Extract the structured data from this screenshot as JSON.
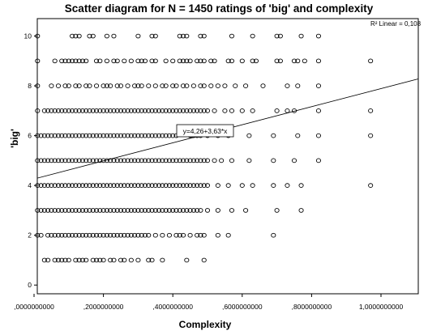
{
  "chart_data": {
    "type": "scatter",
    "title": "Scatter diagram for N = 1450 ratings of 'big' and complexity",
    "xlabel": "Complexity",
    "ylabel": "'big'",
    "xlim": [
      0.0,
      1.0
    ],
    "ylim": [
      -0.35,
      10.7
    ],
    "x_ticks": [
      0.0,
      0.2,
      0.4,
      0.6,
      0.8,
      1.0
    ],
    "x_tick_labels": [
      ",0000000000",
      ",2000000000",
      ",4000000000",
      ",6000000000",
      ",8000000000",
      "1,0000000000"
    ],
    "y_ticks": [
      0,
      2,
      4,
      6,
      8,
      10
    ],
    "y_tick_labels": [
      "0",
      "2",
      "4",
      "6",
      "8",
      "10"
    ],
    "grid": false,
    "fit_line": {
      "intercept": 4.26,
      "slope": 3.63
    },
    "fit_equation_label": "y=4,26+3,63*x",
    "r_squared_label": "R² Linear = 0,108",
    "series": [
      {
        "points_by_y": {
          "10": [
            0.01,
            0.11,
            0.12,
            0.13,
            0.16,
            0.17,
            0.21,
            0.23,
            0.3,
            0.34,
            0.35,
            0.42,
            0.43,
            0.44,
            0.48,
            0.49,
            0.57,
            0.63,
            0.7,
            0.71,
            0.77,
            0.82
          ],
          "9": [
            0.01,
            0.06,
            0.08,
            0.09,
            0.1,
            0.11,
            0.12,
            0.13,
            0.14,
            0.15,
            0.18,
            0.19,
            0.21,
            0.23,
            0.24,
            0.26,
            0.28,
            0.3,
            0.31,
            0.32,
            0.34,
            0.35,
            0.38,
            0.4,
            0.42,
            0.43,
            0.44,
            0.45,
            0.47,
            0.48,
            0.49,
            0.51,
            0.52,
            0.56,
            0.57,
            0.6,
            0.63,
            0.64,
            0.7,
            0.71,
            0.75,
            0.76,
            0.78,
            0.82,
            0.97
          ],
          "8": [
            0.01,
            0.05,
            0.07,
            0.09,
            0.1,
            0.12,
            0.13,
            0.15,
            0.16,
            0.18,
            0.2,
            0.21,
            0.22,
            0.24,
            0.25,
            0.27,
            0.29,
            0.3,
            0.31,
            0.33,
            0.35,
            0.37,
            0.38,
            0.4,
            0.41,
            0.43,
            0.44,
            0.46,
            0.48,
            0.49,
            0.51,
            0.53,
            0.55,
            0.58,
            0.61,
            0.66,
            0.73,
            0.76,
            0.82
          ],
          "7": [
            0.01,
            0.03,
            0.04,
            0.05,
            0.06,
            0.07,
            0.08,
            0.09,
            0.1,
            0.11,
            0.12,
            0.13,
            0.14,
            0.15,
            0.16,
            0.17,
            0.18,
            0.19,
            0.2,
            0.21,
            0.22,
            0.23,
            0.24,
            0.25,
            0.26,
            0.27,
            0.28,
            0.29,
            0.3,
            0.31,
            0.32,
            0.33,
            0.34,
            0.35,
            0.36,
            0.37,
            0.38,
            0.39,
            0.4,
            0.41,
            0.42,
            0.43,
            0.44,
            0.45,
            0.46,
            0.47,
            0.48,
            0.49,
            0.5,
            0.52,
            0.55,
            0.57,
            0.6,
            0.63,
            0.7,
            0.73,
            0.75,
            0.82,
            0.97
          ],
          "6": [
            0.01,
            0.02,
            0.03,
            0.04,
            0.05,
            0.06,
            0.07,
            0.08,
            0.09,
            0.1,
            0.11,
            0.12,
            0.13,
            0.14,
            0.15,
            0.16,
            0.17,
            0.18,
            0.19,
            0.2,
            0.21,
            0.22,
            0.23,
            0.24,
            0.25,
            0.26,
            0.27,
            0.28,
            0.29,
            0.3,
            0.31,
            0.32,
            0.33,
            0.34,
            0.35,
            0.36,
            0.37,
            0.38,
            0.39,
            0.4,
            0.41,
            0.45,
            0.46,
            0.47,
            0.48,
            0.5,
            0.53,
            0.56,
            0.62,
            0.69,
            0.76,
            0.82,
            0.97
          ],
          "5": [
            0.01,
            0.02,
            0.03,
            0.04,
            0.05,
            0.06,
            0.07,
            0.08,
            0.09,
            0.1,
            0.11,
            0.12,
            0.13,
            0.14,
            0.15,
            0.16,
            0.17,
            0.18,
            0.19,
            0.2,
            0.21,
            0.22,
            0.23,
            0.24,
            0.25,
            0.26,
            0.27,
            0.28,
            0.29,
            0.3,
            0.31,
            0.32,
            0.33,
            0.34,
            0.35,
            0.36,
            0.37,
            0.38,
            0.39,
            0.4,
            0.41,
            0.42,
            0.43,
            0.44,
            0.45,
            0.46,
            0.47,
            0.48,
            0.49,
            0.5,
            0.52,
            0.54,
            0.57,
            0.62,
            0.69,
            0.75,
            0.82
          ],
          "4": [
            0.01,
            0.02,
            0.03,
            0.04,
            0.05,
            0.06,
            0.07,
            0.08,
            0.09,
            0.1,
            0.11,
            0.12,
            0.13,
            0.14,
            0.15,
            0.16,
            0.17,
            0.18,
            0.19,
            0.2,
            0.21,
            0.22,
            0.23,
            0.24,
            0.25,
            0.26,
            0.27,
            0.28,
            0.29,
            0.3,
            0.31,
            0.32,
            0.33,
            0.34,
            0.35,
            0.36,
            0.37,
            0.38,
            0.39,
            0.4,
            0.41,
            0.42,
            0.43,
            0.44,
            0.45,
            0.46,
            0.47,
            0.48,
            0.49,
            0.5,
            0.53,
            0.56,
            0.6,
            0.63,
            0.69,
            0.73,
            0.77,
            0.97
          ],
          "3": [
            0.01,
            0.02,
            0.03,
            0.04,
            0.05,
            0.06,
            0.07,
            0.08,
            0.09,
            0.1,
            0.11,
            0.12,
            0.13,
            0.14,
            0.15,
            0.16,
            0.17,
            0.18,
            0.19,
            0.2,
            0.21,
            0.22,
            0.23,
            0.24,
            0.25,
            0.26,
            0.27,
            0.28,
            0.29,
            0.3,
            0.31,
            0.32,
            0.33,
            0.34,
            0.35,
            0.36,
            0.37,
            0.38,
            0.39,
            0.4,
            0.41,
            0.42,
            0.43,
            0.44,
            0.45,
            0.46,
            0.47,
            0.48,
            0.5,
            0.53,
            0.57,
            0.61,
            0.7,
            0.77
          ],
          "2": [
            0.01,
            0.02,
            0.04,
            0.05,
            0.06,
            0.07,
            0.08,
            0.09,
            0.1,
            0.11,
            0.12,
            0.13,
            0.14,
            0.15,
            0.16,
            0.17,
            0.18,
            0.19,
            0.2,
            0.21,
            0.22,
            0.23,
            0.24,
            0.25,
            0.26,
            0.27,
            0.28,
            0.29,
            0.3,
            0.31,
            0.32,
            0.33,
            0.35,
            0.37,
            0.39,
            0.41,
            0.42,
            0.43,
            0.45,
            0.47,
            0.48,
            0.49,
            0.53,
            0.56,
            0.69
          ],
          "1": [
            0.03,
            0.04,
            0.06,
            0.07,
            0.08,
            0.09,
            0.1,
            0.12,
            0.13,
            0.14,
            0.15,
            0.17,
            0.18,
            0.19,
            0.2,
            0.22,
            0.23,
            0.25,
            0.26,
            0.28,
            0.3,
            0.33,
            0.34,
            0.37,
            0.44,
            0.49
          ]
        }
      }
    ]
  }
}
